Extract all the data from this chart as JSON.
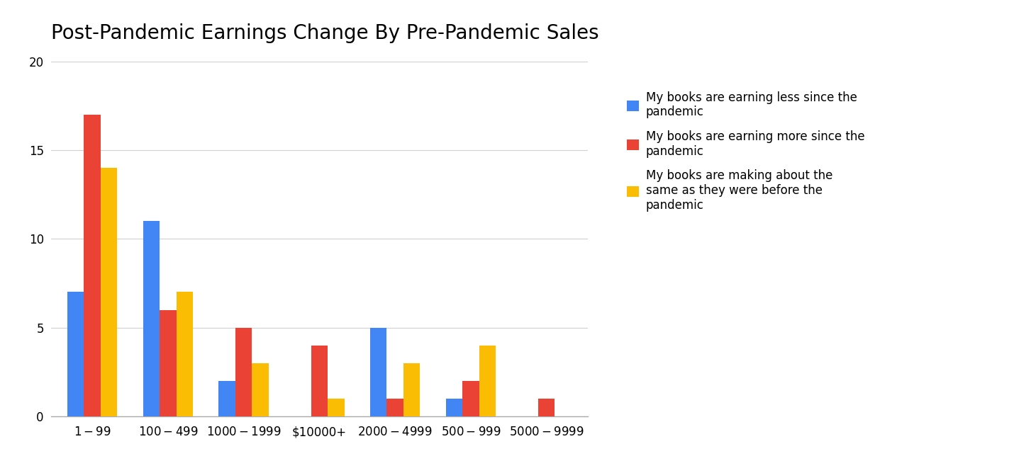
{
  "title": "Post-Pandemic Earnings Change By Pre-Pandemic Sales",
  "categories": [
    "$1 - $99",
    "$100 - $499",
    "$1000 - $1999",
    "$10000+",
    "$2000 - $4999",
    "$500 - $999",
    "$5000 - $9999"
  ],
  "series": [
    {
      "label": "My books are earning less since the\npandemic",
      "color": "#4285F4",
      "values": [
        7,
        11,
        2,
        0,
        5,
        1,
        0
      ]
    },
    {
      "label": "My books are earning more since the\npandemic",
      "color": "#EA4335",
      "values": [
        17,
        6,
        5,
        4,
        1,
        2,
        1
      ]
    },
    {
      "label": "My books are making about the\nsame as they were before the\npandemic",
      "color": "#FBBC04",
      "values": [
        14,
        7,
        3,
        1,
        3,
        4,
        0
      ]
    }
  ],
  "ylim": [
    0,
    20
  ],
  "yticks": [
    0,
    5,
    10,
    15,
    20
  ],
  "background_color": "#ffffff",
  "grid_color": "#d0d0d0",
  "title_fontsize": 20,
  "legend_fontsize": 12,
  "tick_fontsize": 12
}
